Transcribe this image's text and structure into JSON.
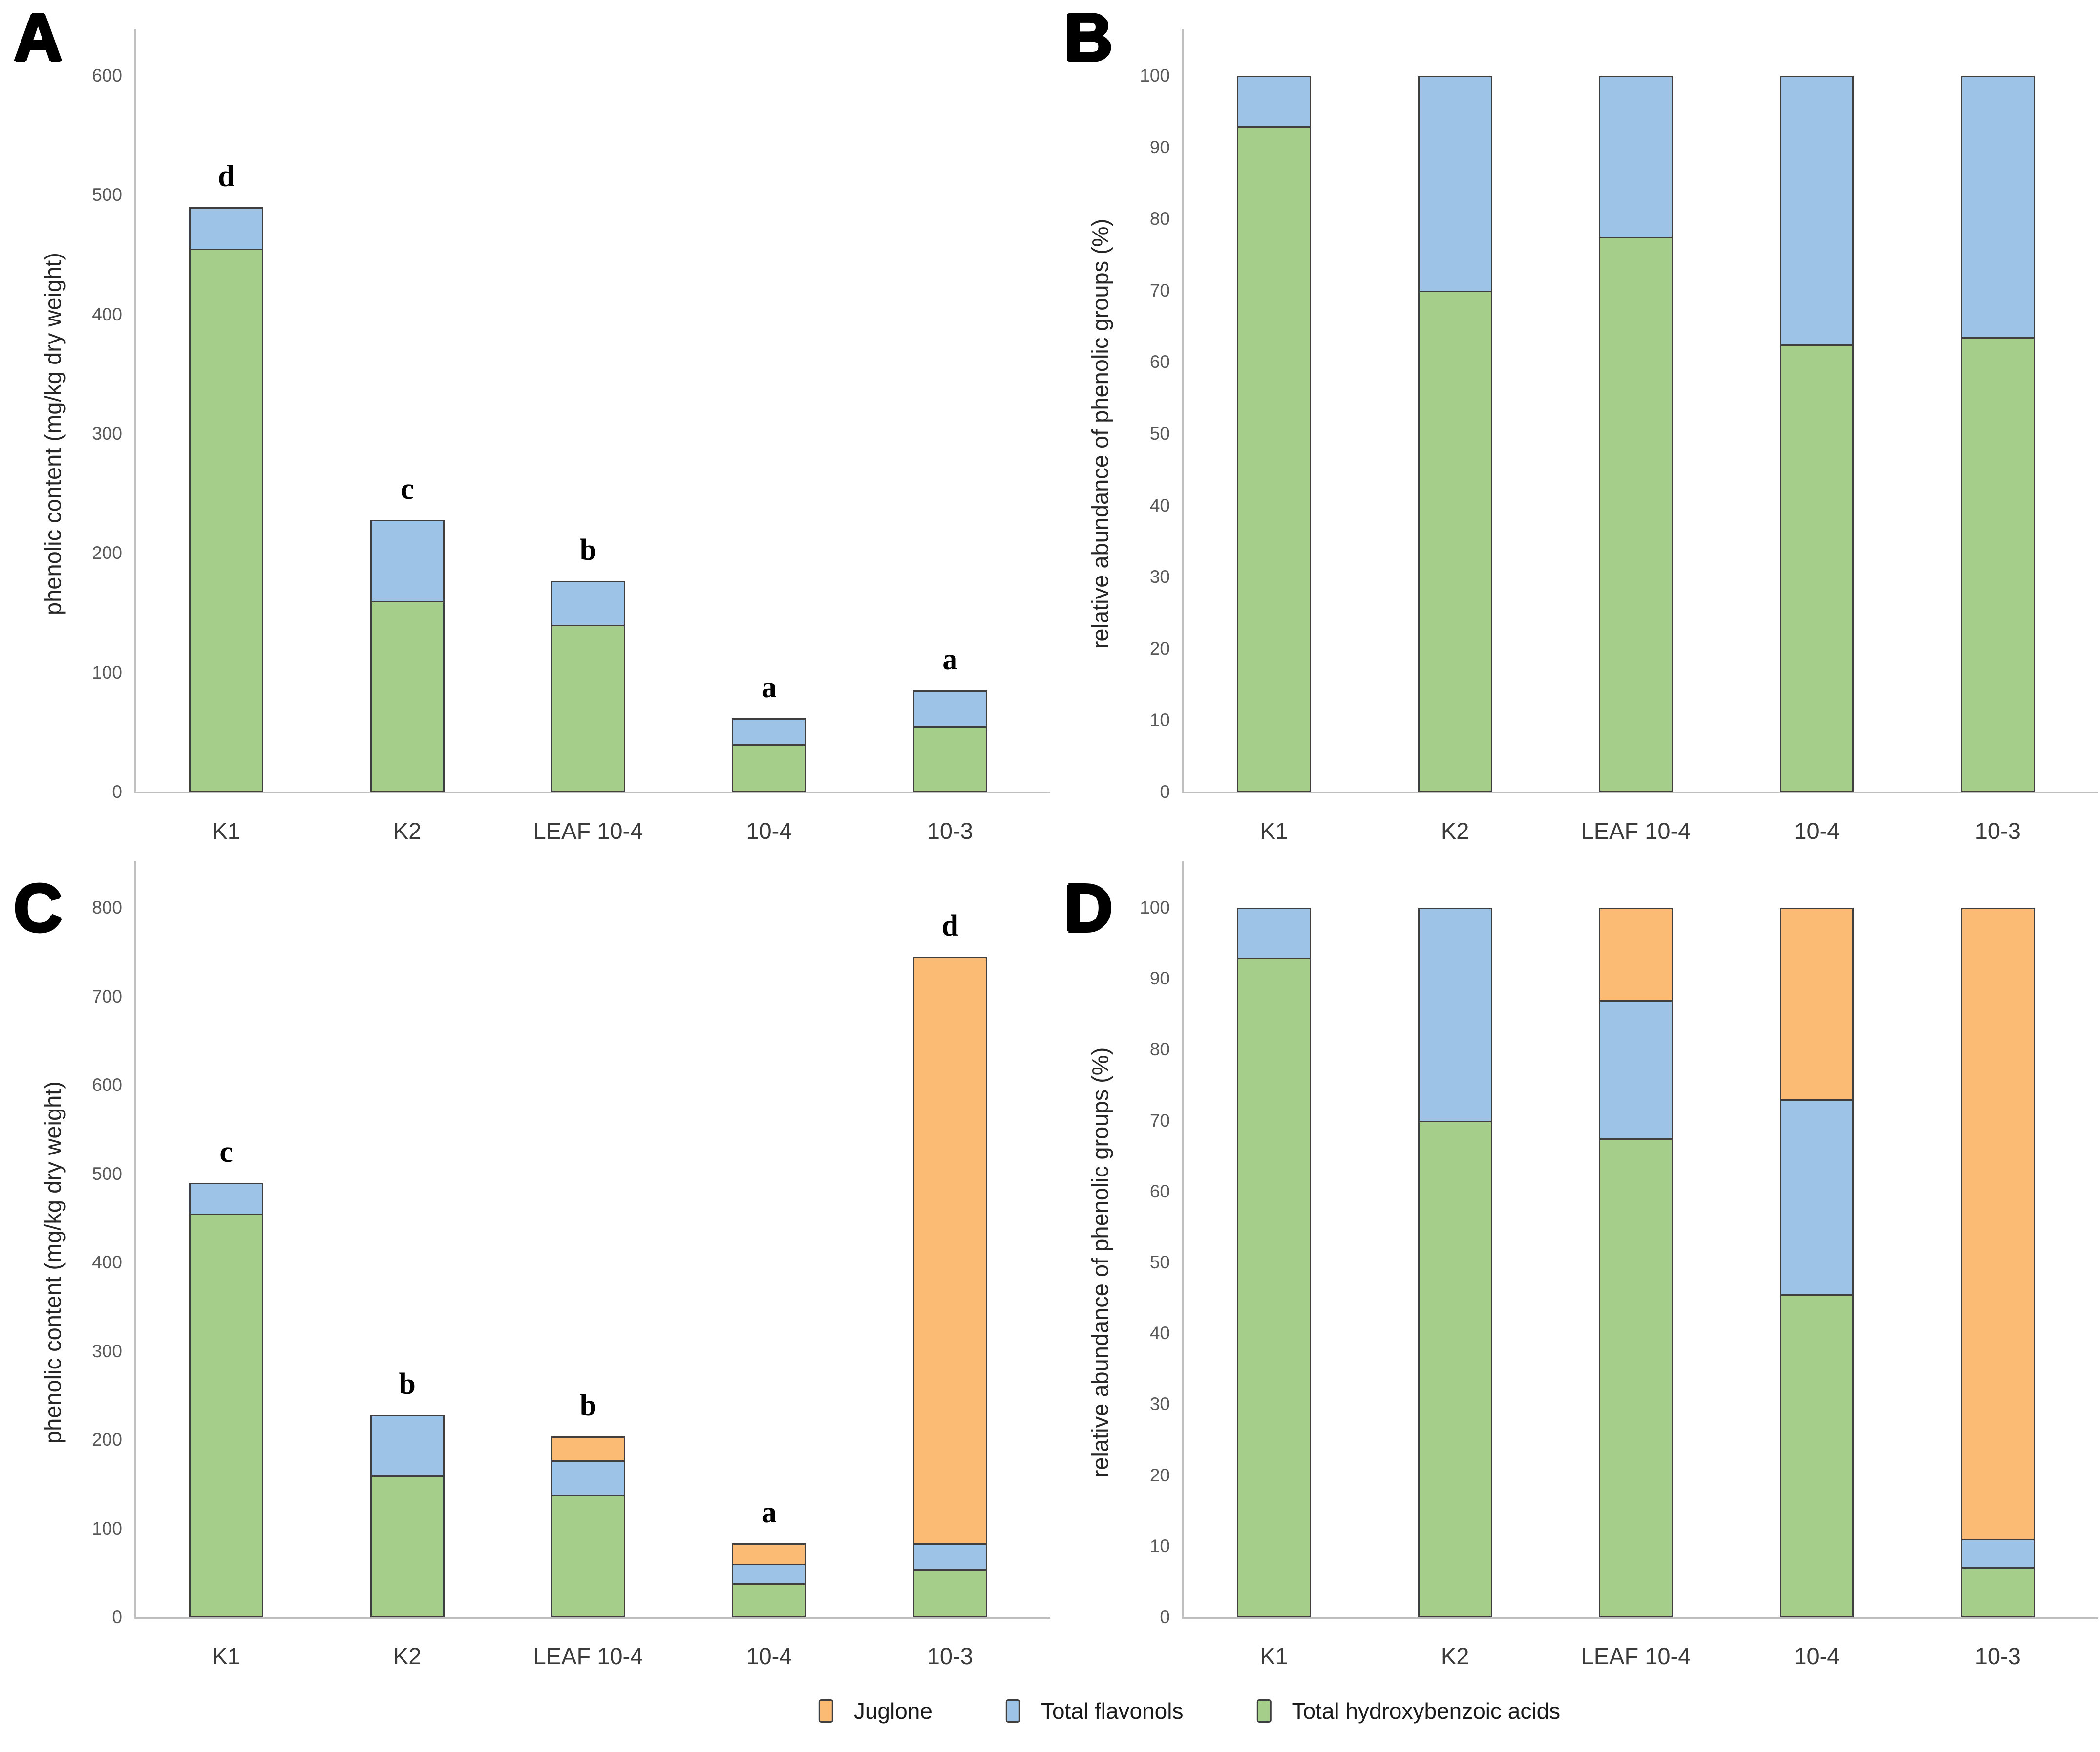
{
  "legend": {
    "items": [
      {
        "label": "Juglone",
        "color": "#FBBB74"
      },
      {
        "label": "Total flavonols",
        "color": "#9DC3E6"
      },
      {
        "label": "Total hydroxybenzoic acids",
        "color": "#A6CE8B"
      }
    ]
  },
  "chart_data": [
    {
      "id": "A",
      "panel_label": "A",
      "type": "bar",
      "stacked": true,
      "grid": false,
      "legend_position": "none",
      "title": "",
      "xlabel": "",
      "ylabel": "phenolic content (mg/kg dry weight)",
      "ylim": [
        0,
        600
      ],
      "yticks": [
        0,
        100,
        200,
        300,
        400,
        500,
        600
      ],
      "categories": [
        "K1",
        "K2",
        "LEAF 10-4",
        "10-4",
        "10-3"
      ],
      "series": [
        {
          "name": "Total hydroxybenzoic acids",
          "color": "#A6CE8B",
          "values": [
            455,
            160,
            140,
            40,
            55
          ]
        },
        {
          "name": "Total flavonols",
          "color": "#9DC3E6",
          "values": [
            35,
            68,
            37,
            22,
            30
          ]
        },
        {
          "name": "Juglone",
          "color": "#FBBB74",
          "values": [
            0,
            0,
            0,
            0,
            0
          ]
        }
      ],
      "stack_totals": [
        490,
        228,
        177,
        62,
        85
      ],
      "bar_annotations": [
        "d",
        "c",
        "b",
        "a",
        "a"
      ]
    },
    {
      "id": "B",
      "panel_label": "B",
      "type": "bar",
      "stacked": true,
      "grid": false,
      "legend_position": "none",
      "title": "",
      "xlabel": "",
      "ylabel": "relative abundance of phenolic groups (%)",
      "ylim": [
        0,
        100
      ],
      "yticks": [
        0,
        10,
        20,
        30,
        40,
        50,
        60,
        70,
        80,
        90,
        100
      ],
      "categories": [
        "K1",
        "K2",
        "LEAF 10-4",
        "10-4",
        "10-3"
      ],
      "series": [
        {
          "name": "Total hydroxybenzoic acids",
          "color": "#A6CE8B",
          "values": [
            93,
            70,
            77.5,
            62.5,
            63.5
          ]
        },
        {
          "name": "Total flavonols",
          "color": "#9DC3E6",
          "values": [
            7,
            30,
            22.5,
            37.5,
            36.5
          ]
        },
        {
          "name": "Juglone",
          "color": "#FBBB74",
          "values": [
            0,
            0,
            0,
            0,
            0
          ]
        }
      ],
      "stack_totals": [
        100,
        100,
        100,
        100,
        100
      ],
      "bar_annotations": [
        "",
        "",
        "",
        "",
        ""
      ]
    },
    {
      "id": "C",
      "panel_label": "C",
      "type": "bar",
      "stacked": true,
      "grid": false,
      "legend_position": "none",
      "title": "",
      "xlabel": "",
      "ylabel": "phenolic content (mg/kg dry weight)",
      "ylim": [
        0,
        800
      ],
      "yticks": [
        0,
        100,
        200,
        300,
        400,
        500,
        600,
        700,
        800
      ],
      "categories": [
        "K1",
        "K2",
        "LEAF 10-4",
        "10-4",
        "10-3"
      ],
      "series": [
        {
          "name": "Total hydroxybenzoic acids",
          "color": "#A6CE8B",
          "values": [
            455,
            160,
            138,
            38,
            54
          ]
        },
        {
          "name": "Total flavonols",
          "color": "#9DC3E6",
          "values": [
            35,
            68,
            39,
            22,
            29
          ]
        },
        {
          "name": "Juglone",
          "color": "#FBBB74",
          "values": [
            0,
            0,
            27,
            23,
            662
          ]
        }
      ],
      "stack_totals": [
        490,
        228,
        204,
        83,
        745
      ],
      "bar_annotations": [
        "c",
        "b",
        "b",
        "a",
        "d"
      ]
    },
    {
      "id": "D",
      "panel_label": "D",
      "type": "bar",
      "stacked": true,
      "grid": false,
      "legend_position": "none",
      "title": "",
      "xlabel": "",
      "ylabel": "relative abundance of phenolic groups (%)",
      "ylim": [
        0,
        100
      ],
      "yticks": [
        0,
        10,
        20,
        30,
        40,
        50,
        60,
        70,
        80,
        90,
        100
      ],
      "categories": [
        "K1",
        "K2",
        "LEAF 10-4",
        "10-4",
        "10-3"
      ],
      "series": [
        {
          "name": "Total hydroxybenzoic acids",
          "color": "#A6CE8B",
          "values": [
            93,
            70,
            67.5,
            45.5,
            7
          ]
        },
        {
          "name": "Total flavonols",
          "color": "#9DC3E6",
          "values": [
            7,
            30,
            19.5,
            27.5,
            4
          ]
        },
        {
          "name": "Juglone",
          "color": "#FBBB74",
          "values": [
            0,
            0,
            13,
            27,
            89
          ]
        }
      ],
      "stack_totals": [
        100,
        100,
        100,
        100,
        100
      ],
      "bar_annotations": [
        "",
        "",
        "",
        "",
        ""
      ]
    }
  ]
}
